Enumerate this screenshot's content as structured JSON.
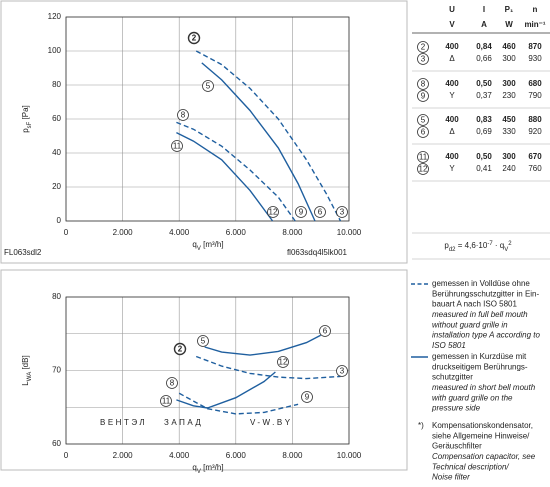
{
  "chart_data": [
    {
      "type": "line",
      "xlabel": [
        {
          "text": "q"
        },
        {
          "text": "V",
          "shift": "sub"
        },
        {
          "text": " [m³/h]"
        }
      ],
      "ylabel": [
        {
          "text": "p"
        },
        {
          "text": "sF",
          "shift": "sub"
        },
        {
          "text": " [Pa]"
        }
      ],
      "xlim": [
        0,
        10000
      ],
      "ylim": [
        0,
        120
      ],
      "xticks": [
        0,
        {
          "value": 2000,
          "label": "2.000"
        },
        {
          "value": 4000,
          "label": "4.000"
        },
        {
          "value": 6000,
          "label": "6.000"
        },
        {
          "value": 8000,
          "label": "8.000"
        },
        {
          "value": 10000,
          "label": "10.000"
        }
      ],
      "yticks": [
        0,
        20,
        40,
        60,
        80,
        100,
        120
      ],
      "grid": true,
      "code_left": "FL063sdl2",
      "code_right": "fl063sdq4l5lk001",
      "series": [
        {
          "start_label": "2",
          "end_label": "3",
          "style": "dashed",
          "color": "#1f5f9f",
          "x": [
            4600,
            5500,
            6500,
            7500,
            8500,
            9200,
            9700
          ],
          "values": [
            100,
            92,
            78,
            60,
            36,
            16,
            0
          ]
        },
        {
          "start_label": "5",
          "end_label": "6",
          "style": "solid",
          "color": "#1f5f9f",
          "x": [
            4800,
            5500,
            6500,
            7500,
            8200,
            8800
          ],
          "values": [
            93,
            83,
            65,
            43,
            22,
            0
          ]
        },
        {
          "start_label": "8",
          "end_label": "9",
          "style": "dashed",
          "color": "#1f5f9f",
          "x": [
            3900,
            4500,
            5500,
            6500,
            7500,
            8100
          ],
          "values": [
            58,
            54,
            44,
            30,
            14,
            0
          ]
        },
        {
          "start_label": "11",
          "end_label": "12",
          "style": "solid",
          "color": "#1f5f9f",
          "x": [
            3900,
            4500,
            5500,
            6500,
            7300
          ],
          "values": [
            52,
            47,
            36,
            18,
            0
          ]
        }
      ]
    },
    {
      "type": "line",
      "xlabel": [
        {
          "text": "q"
        },
        {
          "text": "V",
          "shift": "sub"
        },
        {
          "text": " [m³/h]"
        }
      ],
      "ylabel": [
        {
          "text": "L"
        },
        {
          "text": "WA",
          "shift": "sub"
        },
        {
          "text": " [dB]"
        }
      ],
      "xlim": [
        0,
        10000
      ],
      "ylim": [
        60,
        80
      ],
      "xticks": [
        0,
        {
          "value": 2000,
          "label": "2.000"
        },
        {
          "value": 4000,
          "label": "4.000"
        },
        {
          "value": 6000,
          "label": "6.000"
        },
        {
          "value": 8000,
          "label": "8.000"
        },
        {
          "value": 10000,
          "label": "10.000"
        }
      ],
      "yticks": [
        60,
        70,
        80
      ],
      "minor_yticks": [
        65,
        75
      ],
      "grid": true,
      "watermark": [
        "ВЕНТЭЛ",
        "ЗАПАД",
        "V-W.BY"
      ],
      "series": [
        {
          "start_label": "2",
          "end_label": "3",
          "style": "dashed",
          "color": "#1f5f9f",
          "x": [
            4600,
            5500,
            6500,
            7500,
            8500,
            9700
          ],
          "values": [
            71.9,
            70.6,
            69.6,
            69.1,
            68.9,
            69.2
          ]
        },
        {
          "start_label": "5",
          "end_label": "6",
          "style": "solid",
          "color": "#1f5f9f",
          "x": [
            4900,
            5500,
            6500,
            7500,
            8500,
            9000
          ],
          "values": [
            73.2,
            72.5,
            72.1,
            72.6,
            73.8,
            74.8
          ]
        },
        {
          "start_label": "8",
          "end_label": "9",
          "style": "dashed",
          "color": "#1f5f9f",
          "x": [
            4000,
            5000,
            6000,
            7000,
            8200
          ],
          "values": [
            66.9,
            64.8,
            64.1,
            64.3,
            65.4
          ]
        },
        {
          "start_label": "11",
          "end_label": "12",
          "style": "solid",
          "color": "#1f5f9f",
          "x": [
            3900,
            4500,
            5000,
            6000,
            7000,
            7400
          ],
          "values": [
            66.0,
            65.2,
            64.9,
            66.3,
            68.5,
            69.8
          ]
        }
      ]
    }
  ],
  "table": {
    "header": [
      "U",
      "I",
      "P₁",
      "n"
    ],
    "units": [
      "V",
      "A",
      "W",
      "min⁻¹"
    ],
    "rows": [
      [
        "2",
        "400",
        "0,84",
        "460",
        "870"
      ],
      [
        "3",
        "Δ",
        "0,66",
        "300",
        "930"
      ],
      [
        "8",
        "400",
        "0,50",
        "300",
        "680"
      ],
      [
        "9",
        "Y",
        "0,37",
        "230",
        "790"
      ],
      [
        "5",
        "400",
        "0,83",
        "450",
        "880"
      ],
      [
        "6",
        "Δ",
        "0,69",
        "330",
        "920"
      ],
      [
        "11",
        "400",
        "0,50",
        "300",
        "670"
      ],
      [
        "12",
        "Y",
        "0,41",
        "240",
        "760"
      ]
    ]
  },
  "formula": [
    {
      "text": "p"
    },
    {
      "text": "d2",
      "shift": "sub"
    },
    {
      "text": " = 4,6·10"
    },
    {
      "text": "-7",
      "shift": "super"
    },
    {
      "text": " · q"
    },
    {
      "text": "V",
      "shift": "sub"
    },
    {
      "text": "2",
      "shift": "super"
    }
  ],
  "notes": [
    {
      "style": "dashed",
      "lines": [
        "gemessen in Volldüse ohne",
        "Berührungsschutzgitter in Ein-",
        "bauart A nach ISO 5801"
      ],
      "lines_en": [
        "measured in full bell mouth",
        "without guard grille in",
        "installation type A according to",
        "ISO 5801"
      ]
    },
    {
      "style": "solid",
      "lines": [
        "gemessen in Kurzdüse mit",
        "druckseitigem Berührungs-",
        "schutzgitter"
      ],
      "lines_en": [
        "measured in short bell mouth",
        "with guard grille on the",
        "pressure side"
      ]
    },
    {
      "marker": "*)",
      "lines": [
        "Kompensationskondensator,",
        "siehe Allgemeine Hinweise/",
        "Geräuschfilter"
      ],
      "lines_en": [
        "Compensation capacitor, see",
        "Technical description/",
        "Noise filter"
      ]
    }
  ]
}
